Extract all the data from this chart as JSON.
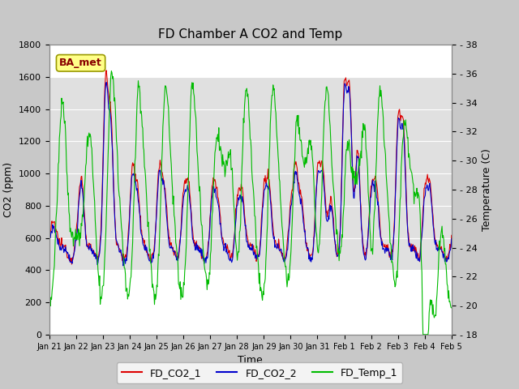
{
  "title": "FD Chamber A CO2 and Temp",
  "xlabel": "Time",
  "ylabel_left": "CO2 (ppm)",
  "ylabel_right": "Temperature (C)",
  "co2_ylim": [
    0,
    1800
  ],
  "temp_ylim": [
    18,
    38
  ],
  "co2_yticks": [
    0,
    200,
    400,
    600,
    800,
    1000,
    1200,
    1400,
    1600,
    1800
  ],
  "temp_yticks": [
    18,
    20,
    22,
    24,
    26,
    28,
    30,
    32,
    34,
    36,
    38
  ],
  "colors": {
    "FD_CO2_1": "#dd0000",
    "FD_CO2_2": "#0000cc",
    "FD_Temp_1": "#00bb00"
  },
  "fig_bg": "#c8c8c8",
  "plot_bg": "#ffffff",
  "band_lo": 400,
  "band_hi": 1600,
  "band_color": "#e0e0e0",
  "ba_met_text": "BA_met",
  "ba_met_bg": "#ffff88",
  "ba_met_edge": "#999900",
  "ba_met_fg": "#880000",
  "xtick_labels": [
    "Jan 21",
    "Jan 22",
    "Jan 23",
    "Jan 24",
    "Jan 25",
    "Jan 26",
    "Jan 27",
    "Jan 28",
    "Jan 29",
    "Jan 30",
    "Jan 31",
    "Feb 1",
    "Feb 2",
    "Feb 3",
    "Feb 4",
    "Feb 5"
  ],
  "legend_labels": [
    "FD_CO2_1",
    "FD_CO2_2",
    "FD_Temp_1"
  ],
  "linewidth": 0.8,
  "title_fontsize": 11,
  "label_fontsize": 9,
  "tick_fontsize": 8,
  "xtick_fontsize": 7,
  "right_tick_prefix": "- "
}
